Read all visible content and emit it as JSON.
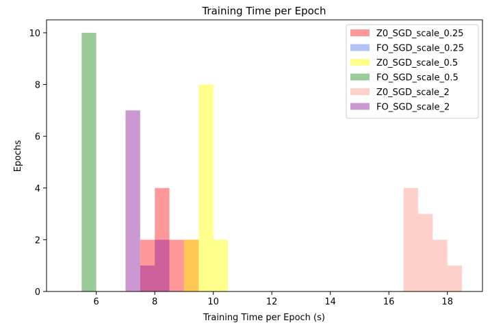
{
  "chart_data": {
    "type": "bar",
    "title": "Training Time per Epoch",
    "xlabel": "Training Time per Epoch (s)",
    "ylabel": "Epochs",
    "xlim": [
      4.3,
      19.2
    ],
    "ylim": [
      0,
      10.5
    ],
    "xticks": [
      6,
      8,
      10,
      12,
      14,
      16,
      18
    ],
    "yticks": [
      0,
      2,
      4,
      6,
      8,
      10
    ],
    "grid": false,
    "legend_position": "top-right",
    "bin_width": 0.5,
    "series": [
      {
        "name": "Z0_SGD_scale_0.25",
        "color": "#ff0000",
        "opacity": 0.4,
        "bins": [
          {
            "x": 7.5,
            "count": 2
          },
          {
            "x": 8.0,
            "count": 4
          },
          {
            "x": 8.5,
            "count": 2
          },
          {
            "x": 9.0,
            "count": 2
          }
        ]
      },
      {
        "name": "FO_SGD_scale_0.25",
        "color": "#4169e1",
        "opacity": 0.4,
        "bins": []
      },
      {
        "name": "Z0_SGD_scale_0.5",
        "color": "#ffff00",
        "opacity": 0.45,
        "bins": [
          {
            "x": 9.0,
            "count": 2
          },
          {
            "x": 9.5,
            "count": 8
          },
          {
            "x": 10.0,
            "count": 2
          }
        ]
      },
      {
        "name": "FO_SGD_scale_0.5",
        "color": "#228b22",
        "opacity": 0.45,
        "bins": [
          {
            "x": 5.5,
            "count": 10
          }
        ]
      },
      {
        "name": "Z0_SGD_scale_2",
        "color": "#ff8a7a",
        "opacity": 0.4,
        "bins": [
          {
            "x": 16.5,
            "count": 4
          },
          {
            "x": 17.0,
            "count": 3
          },
          {
            "x": 17.5,
            "count": 2
          },
          {
            "x": 18.0,
            "count": 1
          }
        ]
      },
      {
        "name": "FO_SGD_scale_2",
        "color": "#8b1a9b",
        "opacity": 0.45,
        "bins": [
          {
            "x": 7.0,
            "count": 7
          },
          {
            "x": 7.5,
            "count": 1
          },
          {
            "x": 8.0,
            "count": 2
          }
        ]
      }
    ]
  }
}
